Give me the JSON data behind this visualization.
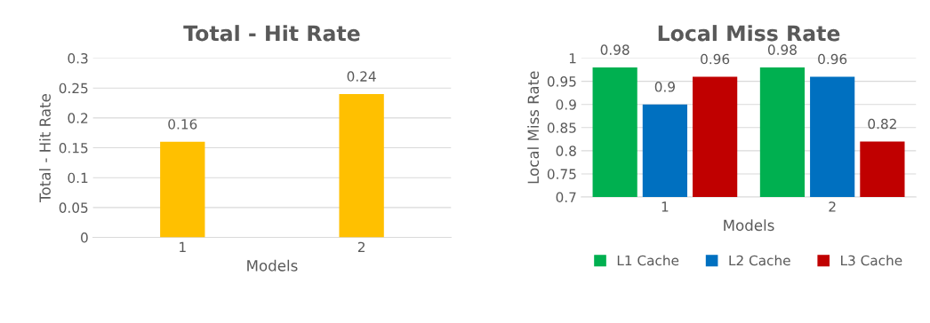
{
  "chart_data": [
    {
      "type": "bar",
      "title": "Total - Hit Rate",
      "xlabel": "Models",
      "ylabel": "Total - Hit Rate",
      "categories": [
        "1",
        "2"
      ],
      "series": [
        {
          "color": "#ffc000",
          "values": [
            0.16,
            0.24
          ]
        }
      ],
      "ylim": [
        0,
        0.3
      ],
      "yticks": [
        0,
        0.05,
        0.1,
        0.15,
        0.2,
        0.25,
        0.3
      ],
      "grid": "y",
      "data_labels": true,
      "legend": false
    },
    {
      "type": "bar",
      "title": "Local Miss Rate",
      "xlabel": "Models",
      "ylabel": "Local Miss Rate",
      "categories": [
        "1",
        "2"
      ],
      "series": [
        {
          "name": "L1 Cache",
          "color": "#00b050",
          "values": [
            0.98,
            0.98
          ]
        },
        {
          "name": "L2 Cache",
          "color": "#0070c0",
          "values": [
            0.9,
            0.96
          ]
        },
        {
          "name": "L3 Cache",
          "color": "#c00000",
          "values": [
            0.96,
            0.82
          ]
        }
      ],
      "ylim": [
        0.7,
        1
      ],
      "yticks": [
        0.7,
        0.75,
        0.8,
        0.85,
        0.9,
        0.95,
        1
      ],
      "grid": "y",
      "data_labels": true,
      "legend": "bottom"
    }
  ]
}
